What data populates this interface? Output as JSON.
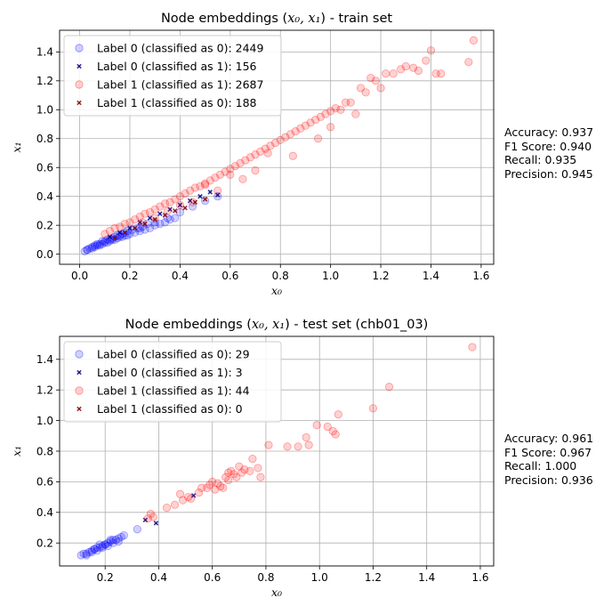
{
  "chart_data": [
    {
      "type": "scatter",
      "title": "Node embeddings (x₀, x₁) - train set",
      "title_prefix": "Node embeddings (",
      "title_suffix": ") - train set",
      "xlabel": "x₀",
      "ylabel": "x₁",
      "xlim": [
        -0.08,
        1.65
      ],
      "ylim": [
        -0.07,
        1.55
      ],
      "xticks": [
        "0.0",
        "0.2",
        "0.4",
        "0.6",
        "0.8",
        "1.0",
        "1.2",
        "1.4",
        "1.6"
      ],
      "yticks": [
        "0.0",
        "0.2",
        "0.4",
        "0.6",
        "0.8",
        "1.0",
        "1.2",
        "1.4"
      ],
      "grid": true,
      "legend_position": "top-left",
      "legend": [
        {
          "label": "Label 0 (classified as 0): 2449",
          "color": "#0000ff",
          "marker": "circle"
        },
        {
          "label": "Label 0 (classified as 1): 156",
          "color": "#000080",
          "marker": "x"
        },
        {
          "label": "Label 1 (classified as 1): 2687",
          "color": "#ff0000",
          "marker": "circle"
        },
        {
          "label": "Label 1 (classified as 0): 188",
          "color": "#800000",
          "marker": "x"
        }
      ],
      "series": [
        {
          "name": "Label 0 (classified as 0): 2449",
          "color": "#0000ff",
          "marker": "circle",
          "x": [
            0.02,
            0.03,
            0.04,
            0.05,
            0.06,
            0.07,
            0.08,
            0.09,
            0.1,
            0.11,
            0.12,
            0.13,
            0.14,
            0.15,
            0.16,
            0.17,
            0.18,
            0.19,
            0.2,
            0.22,
            0.24,
            0.26,
            0.28,
            0.3,
            0.32,
            0.34,
            0.36,
            0.38,
            0.05,
            0.07,
            0.09,
            0.11,
            0.13,
            0.15,
            0.17,
            0.19,
            0.21,
            0.23,
            0.25,
            0.27,
            0.03,
            0.06,
            0.08,
            0.1,
            0.12,
            0.14,
            0.16,
            0.18,
            0.24,
            0.3,
            0.35,
            0.4,
            0.45,
            0.5,
            0.55
          ],
          "y": [
            0.02,
            0.03,
            0.04,
            0.04,
            0.05,
            0.06,
            0.06,
            0.07,
            0.08,
            0.08,
            0.09,
            0.1,
            0.1,
            0.11,
            0.12,
            0.12,
            0.13,
            0.13,
            0.14,
            0.15,
            0.16,
            0.17,
            0.18,
            0.2,
            0.21,
            0.22,
            0.24,
            0.25,
            0.05,
            0.07,
            0.09,
            0.1,
            0.11,
            0.13,
            0.14,
            0.16,
            0.17,
            0.18,
            0.19,
            0.21,
            0.03,
            0.06,
            0.07,
            0.09,
            0.1,
            0.12,
            0.13,
            0.15,
            0.18,
            0.22,
            0.25,
            0.29,
            0.33,
            0.37,
            0.4
          ]
        },
        {
          "name": "Label 0 (classified as 1): 156",
          "color": "#000080",
          "marker": "x",
          "x": [
            0.12,
            0.16,
            0.2,
            0.24,
            0.28,
            0.32,
            0.36,
            0.4,
            0.44,
            0.48,
            0.52,
            0.55
          ],
          "y": [
            0.12,
            0.15,
            0.18,
            0.22,
            0.25,
            0.28,
            0.31,
            0.34,
            0.37,
            0.4,
            0.43,
            0.41
          ]
        },
        {
          "name": "Label 1 (classified as 1): 2687",
          "color": "#ff0000",
          "marker": "circle",
          "x": [
            0.1,
            0.12,
            0.14,
            0.16,
            0.18,
            0.2,
            0.22,
            0.24,
            0.26,
            0.28,
            0.3,
            0.32,
            0.34,
            0.36,
            0.38,
            0.4,
            0.42,
            0.44,
            0.46,
            0.48,
            0.5,
            0.52,
            0.54,
            0.56,
            0.58,
            0.6,
            0.62,
            0.64,
            0.66,
            0.68,
            0.7,
            0.72,
            0.74,
            0.76,
            0.78,
            0.8,
            0.82,
            0.84,
            0.86,
            0.88,
            0.9,
            0.92,
            0.94,
            0.96,
            0.98,
            1.0,
            1.02,
            1.04,
            1.06,
            1.08,
            1.1,
            1.12,
            1.14,
            1.16,
            1.18,
            1.2,
            1.22,
            1.25,
            1.28,
            1.3,
            1.33,
            1.35,
            1.38,
            1.4,
            1.42,
            1.44,
            1.55,
            1.57,
            1.0,
            0.95,
            0.85,
            0.65,
            0.55,
            0.45,
            0.35,
            0.25,
            0.3,
            0.4,
            0.5,
            0.6,
            0.7,
            0.75
          ],
          "y": [
            0.14,
            0.16,
            0.18,
            0.19,
            0.21,
            0.22,
            0.24,
            0.26,
            0.28,
            0.29,
            0.31,
            0.33,
            0.35,
            0.36,
            0.38,
            0.4,
            0.42,
            0.44,
            0.46,
            0.47,
            0.49,
            0.51,
            0.53,
            0.55,
            0.57,
            0.59,
            0.61,
            0.63,
            0.65,
            0.67,
            0.69,
            0.71,
            0.73,
            0.75,
            0.77,
            0.79,
            0.81,
            0.83,
            0.85,
            0.87,
            0.89,
            0.91,
            0.93,
            0.95,
            0.97,
            0.99,
            1.01,
            1.0,
            1.05,
            1.05,
            0.97,
            1.15,
            1.12,
            1.22,
            1.2,
            1.15,
            1.25,
            1.25,
            1.28,
            1.3,
            1.29,
            1.27,
            1.34,
            1.41,
            1.25,
            1.25,
            1.33,
            1.48,
            0.88,
            0.8,
            0.68,
            0.52,
            0.44,
            0.36,
            0.3,
            0.22,
            0.25,
            0.34,
            0.48,
            0.55,
            0.58,
            0.7
          ]
        },
        {
          "name": "Label 1 (classified as 0): 188",
          "color": "#800000",
          "marker": "x",
          "x": [
            0.14,
            0.18,
            0.22,
            0.26,
            0.3,
            0.34,
            0.38,
            0.42,
            0.46,
            0.5
          ],
          "y": [
            0.11,
            0.15,
            0.18,
            0.21,
            0.24,
            0.27,
            0.3,
            0.32,
            0.36,
            0.38
          ]
        }
      ],
      "metrics": [
        "Accuracy: 0.937",
        "F1 Score: 0.940",
        "Recall: 0.935",
        "Precision: 0.945"
      ]
    },
    {
      "type": "scatter",
      "title": "Node embeddings (x₀, x₁) - test set (chb01_03)",
      "title_prefix": "Node embeddings (",
      "title_suffix": ") - test set (chb01_03)",
      "xlabel": "x₀",
      "ylabel": "x₁",
      "xlim": [
        0.03,
        1.65
      ],
      "ylim": [
        0.05,
        1.55
      ],
      "xticks": [
        "0.2",
        "0.4",
        "0.6",
        "0.8",
        "1.0",
        "1.2",
        "1.4",
        "1.6"
      ],
      "yticks": [
        "0.2",
        "0.4",
        "0.6",
        "0.8",
        "1.0",
        "1.2",
        "1.4"
      ],
      "grid": true,
      "legend_position": "top-left",
      "legend": [
        {
          "label": "Label 0 (classified as 0): 29",
          "color": "#0000ff",
          "marker": "circle"
        },
        {
          "label": "Label 0 (classified as 1): 3",
          "color": "#000080",
          "marker": "x"
        },
        {
          "label": "Label 1 (classified as 1): 44",
          "color": "#ff0000",
          "marker": "circle"
        },
        {
          "label": "Label 1 (classified as 0): 0",
          "color": "#800000",
          "marker": "x"
        }
      ],
      "series": [
        {
          "name": "Label 0 (classified as 0): 29",
          "color": "#0000ff",
          "marker": "circle",
          "x": [
            0.11,
            0.12,
            0.13,
            0.14,
            0.15,
            0.16,
            0.17,
            0.18,
            0.19,
            0.2,
            0.21,
            0.22,
            0.23,
            0.24,
            0.25,
            0.26,
            0.13,
            0.15,
            0.17,
            0.19,
            0.21,
            0.23,
            0.25,
            0.27,
            0.16,
            0.18,
            0.2,
            0.22,
            0.32
          ],
          "y": [
            0.12,
            0.13,
            0.13,
            0.14,
            0.15,
            0.16,
            0.17,
            0.17,
            0.18,
            0.19,
            0.2,
            0.21,
            0.22,
            0.22,
            0.23,
            0.24,
            0.12,
            0.14,
            0.15,
            0.17,
            0.18,
            0.2,
            0.21,
            0.25,
            0.16,
            0.19,
            0.19,
            0.22,
            0.29
          ]
        },
        {
          "name": "Label 0 (classified as 1): 3",
          "color": "#000080",
          "marker": "x",
          "x": [
            0.35,
            0.39,
            0.53
          ],
          "y": [
            0.35,
            0.33,
            0.51
          ]
        },
        {
          "name": "Label 1 (classified as 1): 44",
          "color": "#ff0000",
          "marker": "circle",
          "x": [
            0.36,
            0.37,
            0.38,
            0.43,
            0.46,
            0.48,
            0.49,
            0.51,
            0.52,
            0.55,
            0.56,
            0.58,
            0.59,
            0.6,
            0.61,
            0.62,
            0.63,
            0.64,
            0.65,
            0.66,
            0.66,
            0.67,
            0.68,
            0.69,
            0.7,
            0.71,
            0.72,
            0.74,
            0.75,
            0.77,
            0.78,
            0.81,
            0.88,
            0.92,
            0.95,
            0.96,
            0.99,
            1.03,
            1.05,
            1.06,
            1.07,
            1.2,
            1.26,
            1.57
          ],
          "y": [
            0.36,
            0.39,
            0.37,
            0.43,
            0.45,
            0.52,
            0.48,
            0.5,
            0.49,
            0.53,
            0.56,
            0.56,
            0.58,
            0.6,
            0.55,
            0.59,
            0.57,
            0.56,
            0.63,
            0.61,
            0.66,
            0.67,
            0.65,
            0.63,
            0.7,
            0.66,
            0.68,
            0.67,
            0.75,
            0.69,
            0.63,
            0.84,
            0.83,
            0.83,
            0.89,
            0.84,
            0.97,
            0.96,
            0.93,
            0.91,
            1.04,
            1.08,
            1.22,
            1.48
          ]
        },
        {
          "name": "Label 1 (classified as 0): 0",
          "color": "#800000",
          "marker": "x",
          "x": [],
          "y": []
        }
      ],
      "metrics": [
        "Accuracy: 0.961",
        "F1 Score: 0.967",
        "Recall: 1.000",
        "Precision: 0.936"
      ]
    }
  ]
}
